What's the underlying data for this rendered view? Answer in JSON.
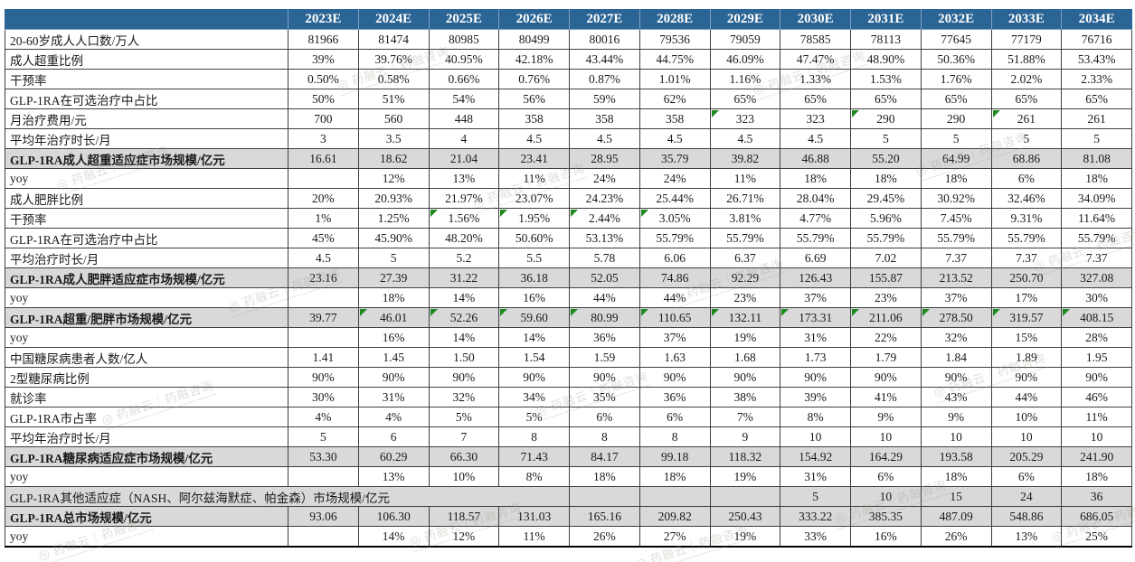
{
  "colors": {
    "header_bg": "#2B6595",
    "summary_row_bg": "#D9D9D9",
    "flag_triangle_green": "#1E8A1E",
    "grid_border": "#3F3F3F"
  },
  "watermark": {
    "text": "药融云｜药融咨询",
    "logo_glyph": "◎"
  },
  "table": {
    "corner_label": "",
    "years": [
      "2023E",
      "2024E",
      "2025E",
      "2026E",
      "2027E",
      "2028E",
      "2029E",
      "2030E",
      "2031E",
      "2032E",
      "2033E",
      "2034E"
    ],
    "rows": [
      {
        "label": "20-60岁成人人口数/万人",
        "type": "normal",
        "values": [
          "81966",
          "81474",
          "80985",
          "80499",
          "80016",
          "79536",
          "79059",
          "78585",
          "78113",
          "77645",
          "77179",
          "76716"
        ]
      },
      {
        "label": "成人超重比例",
        "type": "normal",
        "values": [
          "39%",
          "39.76%",
          "40.95%",
          "42.18%",
          "43.44%",
          "44.75%",
          "46.09%",
          "47.47%",
          "48.90%",
          "50.36%",
          "51.88%",
          "53.43%"
        ]
      },
      {
        "label": "干预率",
        "type": "normal",
        "values": [
          "0.50%",
          "0.58%",
          "0.66%",
          "0.76%",
          "0.87%",
          "1.01%",
          "1.16%",
          "1.33%",
          "1.53%",
          "1.76%",
          "2.02%",
          "2.33%"
        ]
      },
      {
        "label": "GLP-1RA在可选治疗中占比",
        "type": "normal",
        "values": [
          "50%",
          "51%",
          "54%",
          "56%",
          "59%",
          "62%",
          "65%",
          "65%",
          "65%",
          "65%",
          "65%",
          "65%"
        ]
      },
      {
        "label": "月治疗费用/元",
        "type": "normal",
        "values": [
          "700",
          "560",
          "448",
          "358",
          "358",
          "358",
          "323",
          "323",
          "290",
          "290",
          "261",
          "261"
        ],
        "flags": [
          6,
          8,
          10
        ]
      },
      {
        "label": "平均年治疗时长/月",
        "type": "normal",
        "values": [
          "3",
          "3.5",
          "4",
          "4.5",
          "4.5",
          "4.5",
          "4.5",
          "4.5",
          "5",
          "5",
          "5",
          "5"
        ]
      },
      {
        "label": "GLP-1RA成人超重适应症市场规模/亿元",
        "type": "summary",
        "values": [
          "16.61",
          "18.62",
          "21.04",
          "23.41",
          "28.95",
          "35.79",
          "39.82",
          "46.88",
          "55.20",
          "64.99",
          "68.86",
          "81.08"
        ]
      },
      {
        "label": "yoy",
        "type": "normal",
        "values": [
          "",
          "12%",
          "13%",
          "11%",
          "24%",
          "24%",
          "11%",
          "18%",
          "18%",
          "18%",
          "6%",
          "18%"
        ]
      },
      {
        "label": "成人肥胖比例",
        "type": "normal",
        "values": [
          "20%",
          "20.93%",
          "21.97%",
          "23.07%",
          "24.23%",
          "25.44%",
          "26.71%",
          "28.04%",
          "29.45%",
          "30.92%",
          "32.46%",
          "34.09%"
        ]
      },
      {
        "label": "干预率",
        "type": "normal",
        "values": [
          "1%",
          "1.25%",
          "1.56%",
          "1.95%",
          "2.44%",
          "3.05%",
          "3.81%",
          "4.77%",
          "5.96%",
          "7.45%",
          "9.31%",
          "11.64%"
        ],
        "flags": [
          2,
          3,
          4,
          5
        ]
      },
      {
        "label": "GLP-1RA在可选治疗中占比",
        "type": "normal",
        "values": [
          "45%",
          "45.90%",
          "48.20%",
          "50.60%",
          "53.13%",
          "55.79%",
          "55.79%",
          "55.79%",
          "55.79%",
          "55.79%",
          "55.79%",
          "55.79%"
        ]
      },
      {
        "label": "平均治疗时长/月",
        "type": "normal",
        "values": [
          "4.5",
          "5",
          "5.2",
          "5.5",
          "5.78",
          "6.06",
          "6.37",
          "6.69",
          "7.02",
          "7.37",
          "7.37",
          "7.37"
        ]
      },
      {
        "label": "GLP-1RA成人肥胖适应症市场规模/亿元",
        "type": "summary",
        "values": [
          "23.16",
          "27.39",
          "31.22",
          "36.18",
          "52.05",
          "74.86",
          "92.29",
          "126.43",
          "155.87",
          "213.52",
          "250.70",
          "327.08"
        ]
      },
      {
        "label": "yoy",
        "type": "normal",
        "values": [
          "",
          "18%",
          "14%",
          "16%",
          "44%",
          "44%",
          "23%",
          "37%",
          "23%",
          "37%",
          "17%",
          "30%"
        ]
      },
      {
        "label": "GLP-1RA超重/肥胖市场规模/亿元",
        "type": "summary",
        "values": [
          "39.77",
          "46.01",
          "52.26",
          "59.60",
          "80.99",
          "110.65",
          "132.11",
          "173.31",
          "211.06",
          "278.50",
          "319.57",
          "408.15"
        ],
        "flags": [
          1,
          2,
          3,
          4,
          5,
          6,
          7,
          8,
          9,
          10,
          11
        ]
      },
      {
        "label": "yoy",
        "type": "normal",
        "values": [
          "",
          "16%",
          "14%",
          "14%",
          "36%",
          "37%",
          "19%",
          "31%",
          "22%",
          "32%",
          "15%",
          "28%"
        ]
      },
      {
        "label": "中国糖尿病患者人数/亿人",
        "type": "normal",
        "values": [
          "1.41",
          "1.45",
          "1.50",
          "1.54",
          "1.59",
          "1.63",
          "1.68",
          "1.73",
          "1.79",
          "1.84",
          "1.89",
          "1.95"
        ]
      },
      {
        "label": "2型糖尿病比例",
        "type": "normal",
        "values": [
          "90%",
          "90%",
          "90%",
          "90%",
          "90%",
          "90%",
          "90%",
          "90%",
          "90%",
          "90%",
          "90%",
          "90%"
        ]
      },
      {
        "label": "就诊率",
        "type": "normal",
        "values": [
          "30%",
          "31%",
          "32%",
          "34%",
          "35%",
          "36%",
          "38%",
          "39%",
          "41%",
          "43%",
          "44%",
          "46%"
        ]
      },
      {
        "label": "GLP-1RA市占率",
        "type": "normal",
        "values": [
          "4%",
          "4%",
          "5%",
          "5%",
          "6%",
          "6%",
          "7%",
          "8%",
          "9%",
          "9%",
          "10%",
          "11%"
        ]
      },
      {
        "label": "平均年治疗时长/月",
        "type": "normal",
        "values": [
          "5",
          "6",
          "7",
          "8",
          "8",
          "8",
          "9",
          "10",
          "10",
          "10",
          "10",
          "10"
        ]
      },
      {
        "label": "GLP-1RA糖尿病适应症市场规模/亿元",
        "type": "summary",
        "values": [
          "53.30",
          "60.29",
          "66.30",
          "71.43",
          "84.17",
          "99.18",
          "118.32",
          "154.92",
          "164.29",
          "193.58",
          "205.29",
          "241.90"
        ]
      },
      {
        "label": "yoy",
        "type": "normal",
        "values": [
          "",
          "13%",
          "10%",
          "8%",
          "18%",
          "18%",
          "19%",
          "31%",
          "6%",
          "18%",
          "6%",
          "18%"
        ]
      },
      {
        "label": "GLP-1RA其他适应症（NASH、阿尔兹海默症、帕金森）市场规模/亿元",
        "type": "section",
        "label_colspan": 5,
        "values": [
          "",
          "",
          "",
          "5",
          "10",
          "15",
          "24",
          "36"
        ]
      },
      {
        "label": "GLP-1RA总市场规模/亿元",
        "type": "summary",
        "values": [
          "93.06",
          "106.30",
          "118.57",
          "131.03",
          "165.16",
          "209.82",
          "250.43",
          "333.22",
          "385.35",
          "487.09",
          "548.86",
          "686.05"
        ]
      },
      {
        "label": "yoy",
        "type": "normal",
        "values": [
          "",
          "14%",
          "12%",
          "11%",
          "26%",
          "27%",
          "19%",
          "33%",
          "16%",
          "26%",
          "13%",
          "25%"
        ]
      }
    ]
  }
}
